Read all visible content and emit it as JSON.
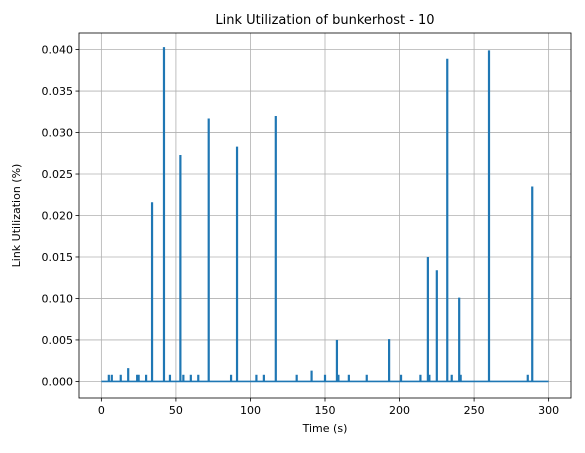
{
  "chart_data": {
    "type": "line",
    "title": "Link Utilization of bunkerhost - 10",
    "xlabel": "Time (s)",
    "ylabel": "Link Utilization (%)",
    "xlim": [
      -15,
      315
    ],
    "ylim": [
      -0.002,
      0.042
    ],
    "xticks": [
      0,
      50,
      100,
      150,
      200,
      250,
      300
    ],
    "xtick_labels": [
      "0",
      "50",
      "100",
      "150",
      "200",
      "250",
      "300"
    ],
    "yticks": [
      0.0,
      0.005,
      0.01,
      0.015,
      0.02,
      0.025,
      0.03,
      0.035,
      0.04
    ],
    "ytick_labels": [
      "0.000",
      "0.005",
      "0.010",
      "0.015",
      "0.020",
      "0.025",
      "0.030",
      "0.035",
      "0.040"
    ],
    "grid": true,
    "series": [
      {
        "color": "#1f77b4",
        "baseline": 0.0,
        "x_start": 0,
        "x_end": 300,
        "spikes": [
          {
            "x": 5,
            "y": 0.0008
          },
          {
            "x": 7,
            "y": 0.0008
          },
          {
            "x": 13,
            "y": 0.0008
          },
          {
            "x": 18,
            "y": 0.0016
          },
          {
            "x": 24,
            "y": 0.0008
          },
          {
            "x": 25,
            "y": 0.0008
          },
          {
            "x": 30,
            "y": 0.0008
          },
          {
            "x": 34,
            "y": 0.0216
          },
          {
            "x": 42,
            "y": 0.0403
          },
          {
            "x": 46,
            "y": 0.0008
          },
          {
            "x": 53,
            "y": 0.0273
          },
          {
            "x": 55,
            "y": 0.0008
          },
          {
            "x": 60,
            "y": 0.0008
          },
          {
            "x": 65,
            "y": 0.0008
          },
          {
            "x": 72,
            "y": 0.0317
          },
          {
            "x": 87,
            "y": 0.0008
          },
          {
            "x": 91,
            "y": 0.0283
          },
          {
            "x": 104,
            "y": 0.0008
          },
          {
            "x": 109,
            "y": 0.0008
          },
          {
            "x": 117,
            "y": 0.032
          },
          {
            "x": 131,
            "y": 0.0008
          },
          {
            "x": 141,
            "y": 0.0013
          },
          {
            "x": 150,
            "y": 0.0008
          },
          {
            "x": 158,
            "y": 0.005
          },
          {
            "x": 159,
            "y": 0.0008
          },
          {
            "x": 166,
            "y": 0.0008
          },
          {
            "x": 178,
            "y": 0.0008
          },
          {
            "x": 193,
            "y": 0.0051
          },
          {
            "x": 201,
            "y": 0.0008
          },
          {
            "x": 214,
            "y": 0.0008
          },
          {
            "x": 219,
            "y": 0.015
          },
          {
            "x": 220,
            "y": 0.0008
          },
          {
            "x": 225,
            "y": 0.0134
          },
          {
            "x": 232,
            "y": 0.0389
          },
          {
            "x": 235,
            "y": 0.0008
          },
          {
            "x": 240,
            "y": 0.0101
          },
          {
            "x": 241,
            "y": 0.0008
          },
          {
            "x": 260,
            "y": 0.0399
          },
          {
            "x": 286,
            "y": 0.0008
          },
          {
            "x": 289,
            "y": 0.0235
          }
        ]
      }
    ]
  }
}
